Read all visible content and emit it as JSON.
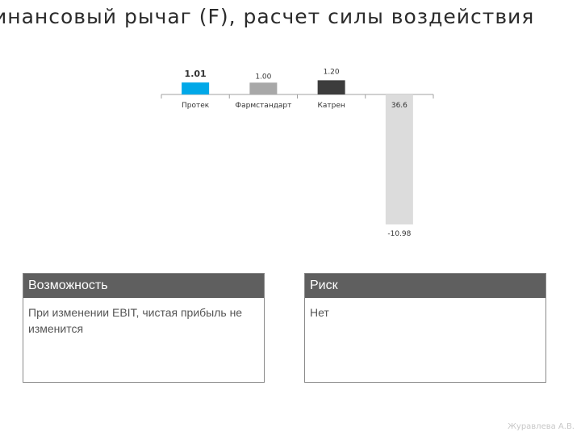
{
  "slide": {
    "title": "инансовый рычаг (F), расчет силы воздействия",
    "author": "Журавлева А.В."
  },
  "chart_data": {
    "type": "bar",
    "categories": [
      "Протек",
      "Фармстандарт",
      "Катрен",
      ""
    ],
    "values": [
      1.01,
      1.0,
      1.2,
      -10.98
    ],
    "data_labels": [
      "1.01",
      "1.00",
      "1.20",
      "-10.98"
    ],
    "extra_label": "36.6",
    "colors": [
      "#00a8e8",
      "#a8a8a8",
      "#3c3c3c",
      "#dcdcdc"
    ],
    "title": "",
    "xlabel": "",
    "ylabel": ""
  },
  "boxes": [
    {
      "header": "Возможность",
      "body": "При изменении EBIT, чистая прибыль не изменится"
    },
    {
      "header": "Риск",
      "body": "Нет"
    }
  ],
  "colors": {
    "box_header_bg": "#5f5f5f",
    "axis": "#a0a0a0"
  }
}
